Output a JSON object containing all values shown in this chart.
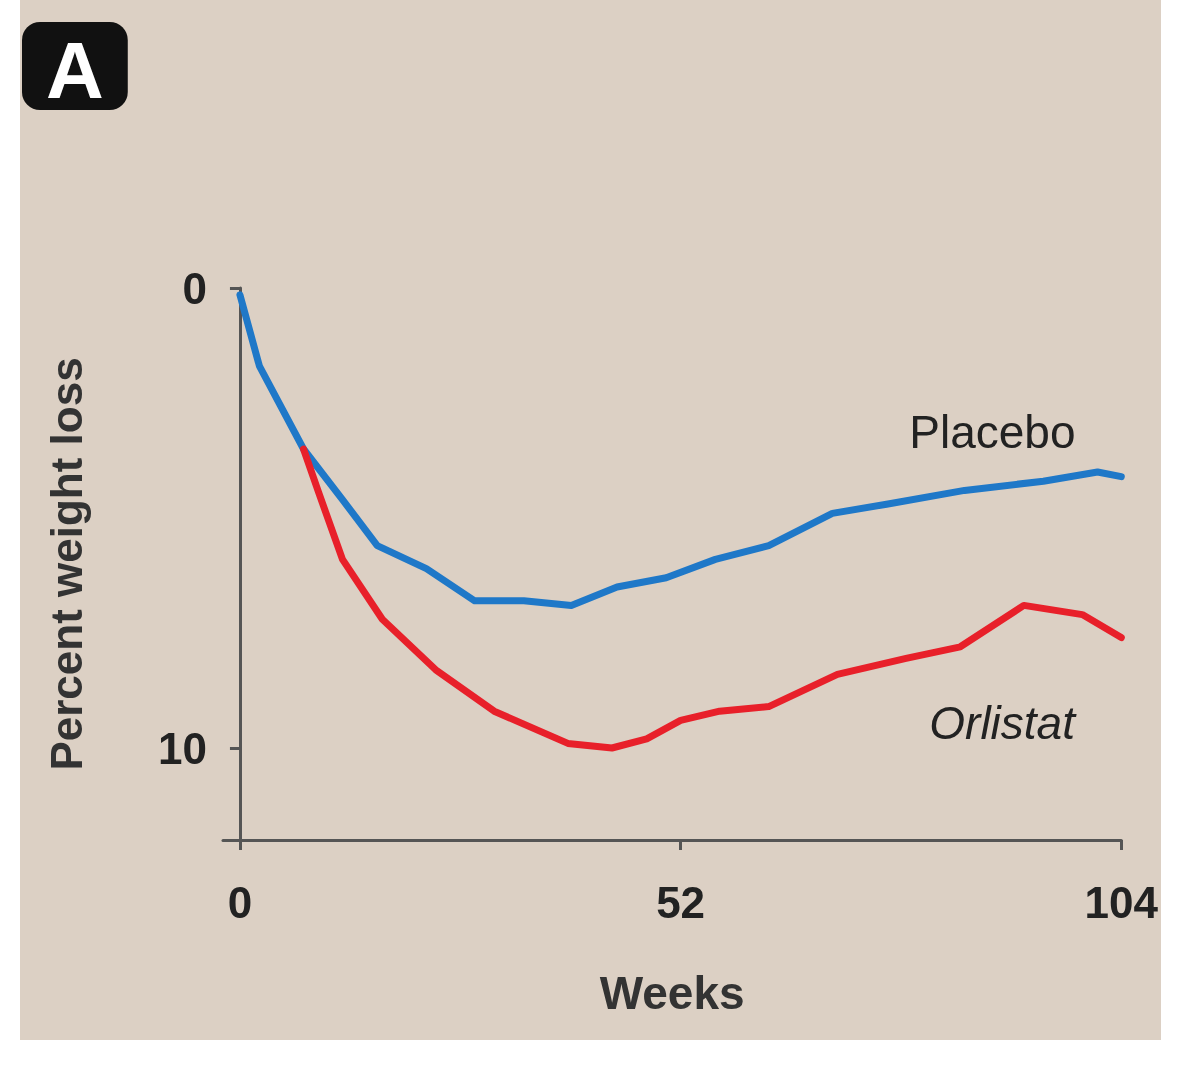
{
  "chart_data": {
    "type": "line",
    "xlabel": "Weeks",
    "ylabel": "Percent weight loss",
    "annotations": [
      "A"
    ],
    "xlim": [
      -2,
      104
    ],
    "xticks": [
      0,
      52,
      104
    ],
    "ylim": [
      12,
      0
    ],
    "yticks": [
      0,
      10
    ],
    "grid": false,
    "legend": false,
    "marker": "none",
    "line_style": "solid",
    "series": [
      {
        "name": "Placebo",
        "color": "#1f78c8",
        "x": [
          0,
          2.3,
          7.5,
          12.1,
          16.2,
          22,
          27.7,
          33.5,
          39.1,
          44.5,
          50.3,
          56.1,
          62.4,
          69.9,
          76.3,
          85.5,
          94.8,
          101.2,
          104
        ],
        "values": [
          0.15,
          1.7,
          3.5,
          4.6,
          5.6,
          6.1,
          6.8,
          6.8,
          6.9,
          6.5,
          6.3,
          5.9,
          5.6,
          4.9,
          4.7,
          4.4,
          4.2,
          4.0,
          4.1
        ]
      },
      {
        "name": "Orlistat",
        "color": "#e8202a",
        "x": [
          7.5,
          9.2,
          12.1,
          16.8,
          23.1,
          30,
          38.7,
          43.9,
          48,
          52,
          56.6,
          62.4,
          70.5,
          78.6,
          85,
          92.5,
          99.4,
          104
        ],
        "values": [
          3.5,
          4.4,
          5.9,
          7.2,
          8.3,
          9.2,
          9.9,
          10.0,
          9.8,
          9.4,
          9.2,
          9.1,
          8.4,
          8.05,
          7.8,
          6.9,
          7.1,
          7.6
        ]
      }
    ]
  }
}
